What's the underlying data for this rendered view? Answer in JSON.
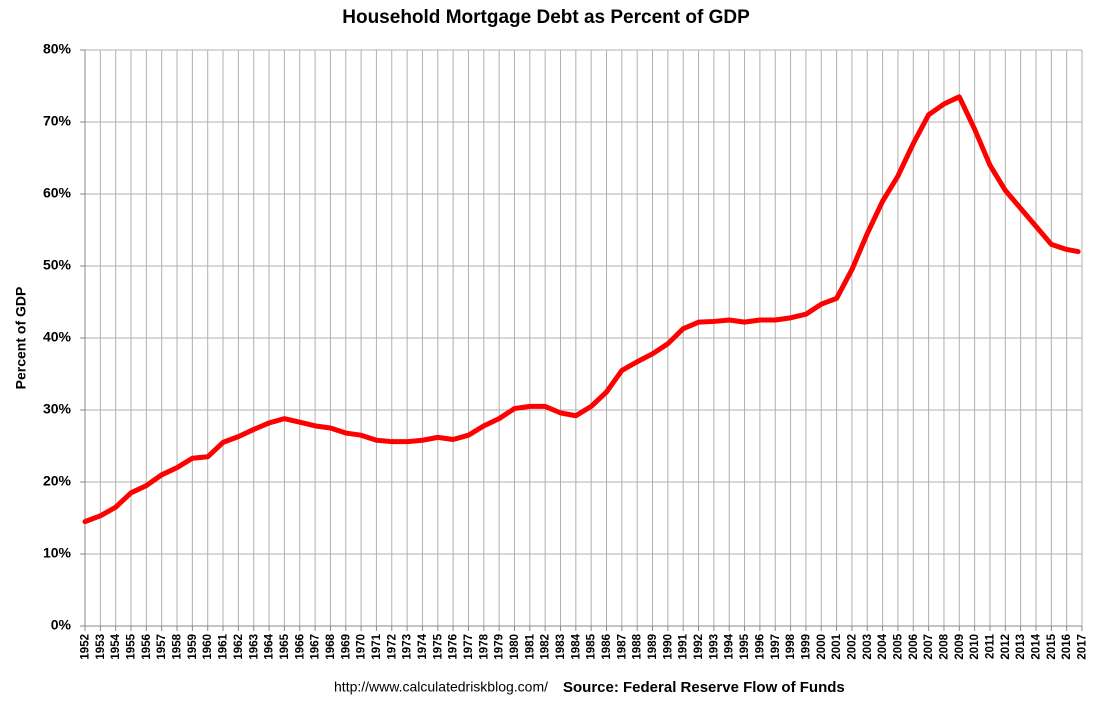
{
  "chart_data": {
    "type": "line",
    "title": "Household Mortgage Debt as Percent of GDP",
    "y_label": "Percent of GDP",
    "source_url": "http://www.calculatedriskblog.com/",
    "source": "Source: Federal Reserve Flow of Funds",
    "x": [
      1952,
      1953,
      1954,
      1955,
      1956,
      1957,
      1958,
      1959,
      1960,
      1961,
      1962,
      1963,
      1964,
      1965,
      1966,
      1967,
      1968,
      1969,
      1970,
      1971,
      1972,
      1973,
      1974,
      1975,
      1976,
      1977,
      1978,
      1979,
      1980,
      1981,
      1982,
      1983,
      1984,
      1985,
      1986,
      1987,
      1988,
      1989,
      1990,
      1991,
      1992,
      1993,
      1994,
      1995,
      1996,
      1997,
      1998,
      1999,
      2000,
      2001,
      2002,
      2003,
      2004,
      2005,
      2006,
      2007,
      2008,
      2009,
      2010,
      2011,
      2012,
      2013,
      2014,
      2015,
      2016,
      2016.75
    ],
    "series": [
      {
        "name": "Household Mortgage Debt as Percent of GDP",
        "color": "#ff0000",
        "values": [
          14.5,
          15.3,
          16.5,
          18.5,
          19.5,
          21,
          22,
          23.3,
          23.5,
          25.5,
          26.3,
          27.3,
          28.2,
          28.8,
          28.3,
          27.8,
          27.5,
          26.8,
          26.5,
          25.8,
          25.6,
          25.6,
          25.8,
          26.2,
          25.9,
          26.5,
          27.8,
          28.8,
          30.2,
          30.5,
          30.5,
          29.6,
          29.2,
          30.5,
          32.5,
          35.5,
          36.7,
          37.8,
          39.2,
          41.3,
          42.2,
          42.3,
          42.5,
          42.2,
          42.5,
          42.5,
          42.8,
          43.3,
          44.7,
          45.5,
          49.5,
          54.5,
          59,
          62.5,
          67,
          71,
          72.5,
          73.5,
          69,
          64,
          60.5,
          58,
          55.5,
          53,
          52.3,
          52
        ]
      }
    ],
    "xlim": [
      1952,
      2017
    ],
    "xticks": [
      1952,
      1953,
      1954,
      1955,
      1956,
      1957,
      1958,
      1959,
      1960,
      1961,
      1962,
      1963,
      1964,
      1965,
      1966,
      1967,
      1968,
      1969,
      1970,
      1971,
      1972,
      1973,
      1974,
      1975,
      1976,
      1977,
      1978,
      1979,
      1980,
      1981,
      1982,
      1983,
      1984,
      1985,
      1986,
      1987,
      1988,
      1989,
      1990,
      1991,
      1992,
      1993,
      1994,
      1995,
      1996,
      1997,
      1998,
      1999,
      2000,
      2001,
      2002,
      2003,
      2004,
      2005,
      2006,
      2007,
      2008,
      2009,
      2010,
      2011,
      2012,
      2013,
      2014,
      2015,
      2016,
      2017
    ],
    "ylim": [
      0,
      80
    ],
    "yticks": [
      {
        "value": 0,
        "label": "0%"
      },
      {
        "value": 10,
        "label": "10%"
      },
      {
        "value": 20,
        "label": "20%"
      },
      {
        "value": 30,
        "label": "30%"
      },
      {
        "value": 40,
        "label": "40%"
      },
      {
        "value": 50,
        "label": "50%"
      },
      {
        "value": 60,
        "label": "60%"
      },
      {
        "value": 70,
        "label": "70%"
      },
      {
        "value": 80,
        "label": "80%"
      }
    ],
    "grid": true
  }
}
